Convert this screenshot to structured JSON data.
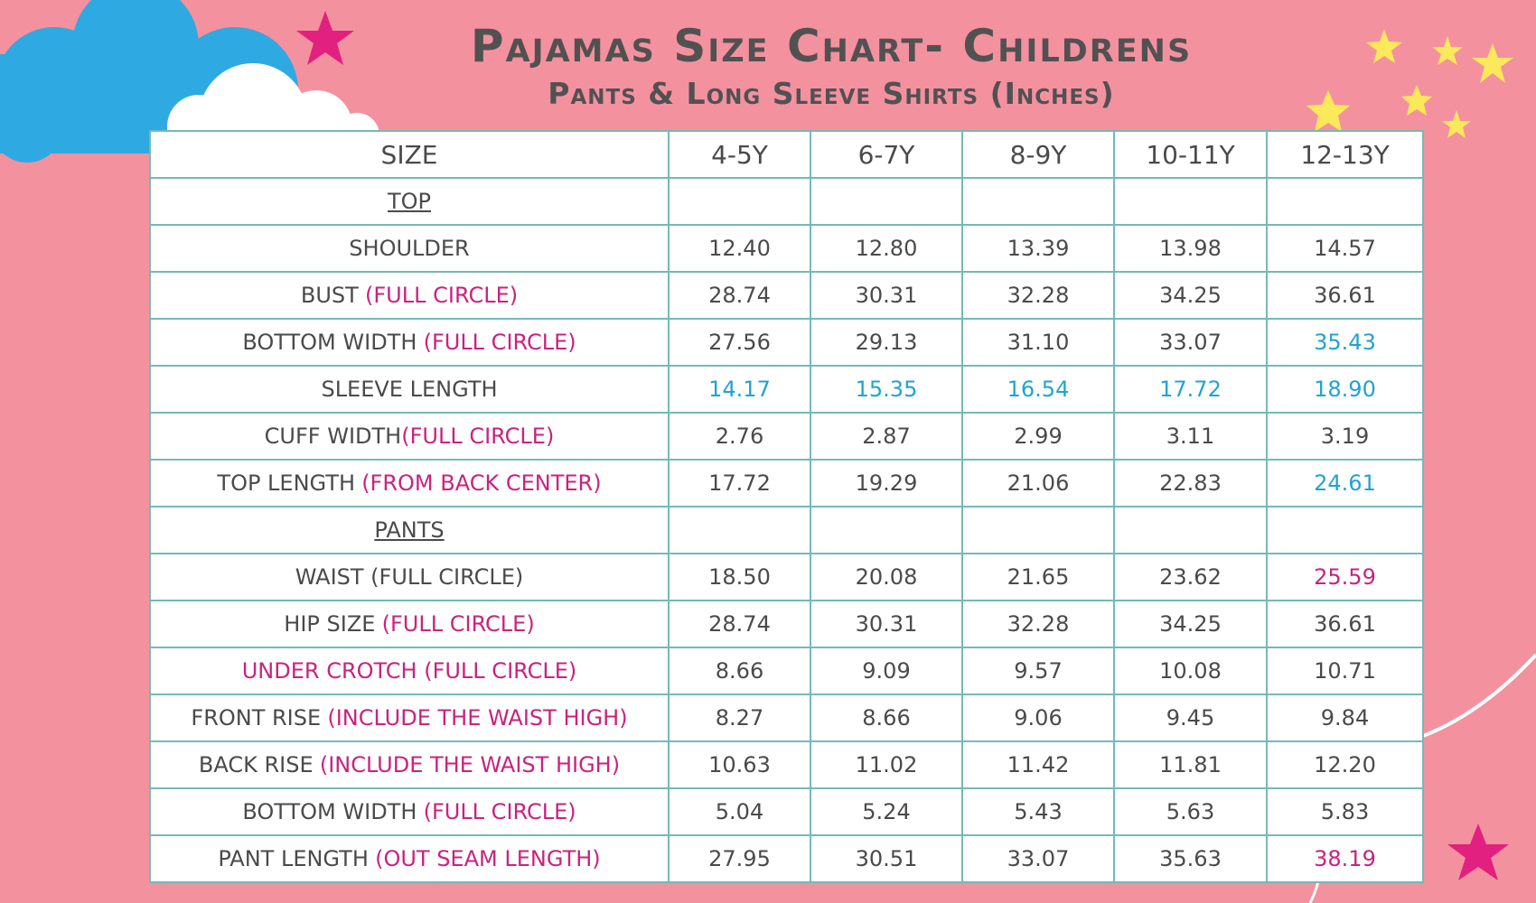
{
  "header": {
    "title": "Pajamas Size Chart- Childrens",
    "subtitle": "Pants & Long Sleeve Shirts (Inches)"
  },
  "colors": {
    "text": "#4a4a4a",
    "note": "#c8237f",
    "blue": "#22a3cf"
  },
  "table": {
    "header": [
      "SIZE",
      "4-5Y",
      "6-7Y",
      "8-9Y",
      "10-11Y",
      "12-13Y"
    ],
    "rows": [
      {
        "label": "TOP",
        "section": true
      },
      {
        "label": "SHOULDER",
        "values": [
          "12.40",
          "12.80",
          "13.39",
          "13.98",
          "14.57"
        ]
      },
      {
        "label": "BUST",
        "note": "(FULL CIRCLE)",
        "values": [
          "28.74",
          "30.31",
          "32.28",
          "34.25",
          "36.61"
        ]
      },
      {
        "label": "BOTTOM WIDTH",
        "note": "(FULL CIRCLE)",
        "values": [
          "27.56",
          "29.13",
          "31.10",
          "33.07",
          "35.43"
        ],
        "value_colors": [
          null,
          null,
          null,
          null,
          "#22a3cf"
        ]
      },
      {
        "label": "SLEEVE LENGTH",
        "values": [
          "14.17",
          "15.35",
          "16.54",
          "17.72",
          "18.90"
        ],
        "value_colors": [
          "#22a3cf",
          "#22a3cf",
          "#22a3cf",
          "#22a3cf",
          "#22a3cf"
        ]
      },
      {
        "label": "CUFF WIDTH",
        "note": "(FULL CIRCLE)",
        "joined": true,
        "values": [
          "2.76",
          "2.87",
          "2.99",
          "3.11",
          "3.19"
        ]
      },
      {
        "label": "TOP LENGTH",
        "note": "(FROM BACK CENTER)",
        "values": [
          "17.72",
          "19.29",
          "21.06",
          "22.83",
          "24.61"
        ],
        "value_colors": [
          null,
          null,
          null,
          null,
          "#22a3cf"
        ]
      },
      {
        "label": "PANTS",
        "section": true
      },
      {
        "label": "WAIST (FULL CIRCLE)",
        "values": [
          "18.50",
          "20.08",
          "21.65",
          "23.62",
          "25.59"
        ],
        "value_colors": [
          null,
          null,
          null,
          null,
          "#c8237f"
        ]
      },
      {
        "label": "HIP SIZE",
        "note": "(FULL CIRCLE)",
        "values": [
          "28.74",
          "30.31",
          "32.28",
          "34.25",
          "36.61"
        ]
      },
      {
        "note": "UNDER CROTCH (FULL CIRCLE)",
        "joined": true,
        "values": [
          "8.66",
          "9.09",
          "9.57",
          "10.08",
          "10.71"
        ]
      },
      {
        "label": "FRONT RISE",
        "note": "(INCLUDE THE WAIST HIGH)",
        "values": [
          "8.27",
          "8.66",
          "9.06",
          "9.45",
          "9.84"
        ]
      },
      {
        "label": "BACK RISE",
        "note": "(INCLUDE THE WAIST HIGH)",
        "values": [
          "10.63",
          "11.02",
          "11.42",
          "11.81",
          "12.20"
        ]
      },
      {
        "label": "BOTTOM WIDTH",
        "note": "(FULL CIRCLE)",
        "values": [
          "5.04",
          "5.24",
          "5.43",
          "5.63",
          "5.83"
        ]
      },
      {
        "label": "PANT LENGTH",
        "note": "(OUT SEAM LENGTH)",
        "values": [
          "27.95",
          "30.51",
          "33.07",
          "35.63",
          "38.19"
        ],
        "value_colors": [
          null,
          null,
          null,
          null,
          "#c8237f"
        ]
      }
    ]
  }
}
